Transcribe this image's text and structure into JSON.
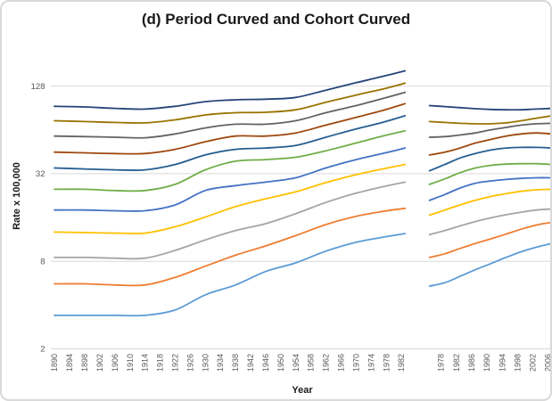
{
  "chart_data": {
    "type": "line",
    "title": "(d) Period Curved and Cohort Curved",
    "xlabel": "Year",
    "ylabel": "Rate x 100,000",
    "y_scale": "log",
    "y_ticks": [
      2,
      8,
      32,
      128
    ],
    "ylim": [
      2,
      200
    ],
    "grid": "horizontal",
    "legend": "none",
    "x_tick_labels_period": [
      "1890",
      "1894",
      "1898",
      "1902",
      "1906",
      "1910",
      "1914",
      "1918",
      "1922",
      "1926",
      "1930",
      "1934",
      "1938",
      "1942",
      "1946",
      "1950",
      "1954",
      "1958",
      "1962",
      "1966",
      "1970",
      "1974",
      "1978",
      "1982"
    ],
    "x_tick_labels_cohort": [
      "1978",
      "1982",
      "1986",
      "1990",
      "1994",
      "1998",
      "2002",
      "2006"
    ],
    "period_years": [
      1890,
      1898,
      1906,
      1914,
      1922,
      1930,
      1938,
      1946,
      1954,
      1962,
      1970,
      1977,
      1983
    ],
    "cohort_years": [
      1975,
      1979,
      1983,
      1987,
      1991,
      1995,
      1999,
      2003,
      2007
    ],
    "series": [
      {
        "id": "line-01",
        "color": "#264478",
        "period": [
          93,
          92,
          90,
          89,
          93,
          100,
          103,
          104,
          107,
          120,
          135,
          149,
          163
        ],
        "cohort": [
          94,
          92.5,
          91,
          89.5,
          88.5,
          88,
          88,
          89,
          90
        ]
      },
      {
        "id": "line-02",
        "color": "#997300",
        "period": [
          74,
          73,
          72,
          71.5,
          75,
          81,
          84,
          84.5,
          88,
          99,
          111,
          122,
          134
        ],
        "cohort": [
          73,
          72,
          71,
          70.5,
          70.5,
          71.5,
          74,
          77,
          80
        ]
      },
      {
        "id": "line-03",
        "color": "#636363",
        "period": [
          58,
          57.5,
          57,
          56.5,
          60,
          66,
          70,
          70,
          74,
          84,
          94,
          105,
          116
        ],
        "cohort": [
          57,
          57.5,
          59,
          61,
          64,
          66.5,
          69,
          70.5,
          71
        ]
      },
      {
        "id": "line-04",
        "color": "#9E480E",
        "period": [
          45,
          44.5,
          44,
          44,
          47,
          53,
          58,
          58,
          61,
          69,
          78,
          87,
          97
        ],
        "cohort": [
          43,
          45,
          48,
          52,
          55,
          58,
          60,
          61,
          60
        ]
      },
      {
        "id": "line-05",
        "color": "#255E91",
        "period": [
          35,
          34.5,
          34,
          34,
          37,
          43,
          47,
          48,
          50,
          57,
          65,
          72,
          80
        ],
        "cohort": [
          33.5,
          37,
          41,
          44,
          46.5,
          48,
          48.5,
          48.5,
          48
        ]
      },
      {
        "id": "line-06",
        "color": "#70AD47",
        "period": [
          25,
          25,
          24.5,
          24.5,
          27,
          34,
          39,
          40,
          41.5,
          46,
          52,
          58,
          63
        ],
        "cohort": [
          27,
          29.5,
          32.5,
          35,
          36.5,
          37.2,
          37.5,
          37.5,
          37
        ]
      },
      {
        "id": "line-07",
        "color": "#4472C4",
        "period": [
          18,
          18,
          17.8,
          17.8,
          19.5,
          24.5,
          26.5,
          28,
          30,
          35,
          40,
          44,
          48
        ],
        "cohort": [
          21,
          23,
          25.5,
          27.5,
          28.5,
          29.2,
          29.7,
          30,
          30
        ]
      },
      {
        "id": "line-08",
        "color": "#FFC000",
        "period": [
          12.7,
          12.6,
          12.5,
          12.5,
          13.8,
          16.1,
          19,
          21.5,
          24,
          27.8,
          31.5,
          34.5,
          37
        ],
        "cohort": [
          16.6,
          18,
          19.5,
          21,
          22.3,
          23.3,
          24.2,
          24.8,
          25
        ]
      },
      {
        "id": "line-09",
        "color": "#A5A5A5",
        "period": [
          8.5,
          8.5,
          8.4,
          8.4,
          9.5,
          11.2,
          13,
          14.5,
          17,
          20.3,
          23.5,
          26,
          28
        ],
        "cohort": [
          12.2,
          13,
          14,
          15,
          15.9,
          16.7,
          17.4,
          18,
          18.3
        ]
      },
      {
        "id": "line-10",
        "color": "#ED7D31",
        "period": [
          5.6,
          5.6,
          5.5,
          5.5,
          6.2,
          7.4,
          8.8,
          10.2,
          12,
          14.3,
          16.3,
          17.6,
          18.5
        ],
        "cohort": [
          8.5,
          9,
          9.8,
          10.6,
          11.4,
          12.3,
          13.3,
          14.2,
          14.8
        ]
      },
      {
        "id": "line-11",
        "color": "#5B9BD5",
        "period": [
          3.4,
          3.4,
          3.4,
          3.4,
          3.7,
          4.7,
          5.5,
          6.8,
          7.8,
          9.4,
          10.8,
          11.7,
          12.4
        ],
        "cohort": [
          5.4,
          5.7,
          6.3,
          7,
          7.7,
          8.5,
          9.3,
          10,
          10.6
        ]
      }
    ],
    "style": {
      "grid_color": "#d9d9d9",
      "tick_label_color": "#595959",
      "title_color": "#1a1a1a"
    }
  }
}
